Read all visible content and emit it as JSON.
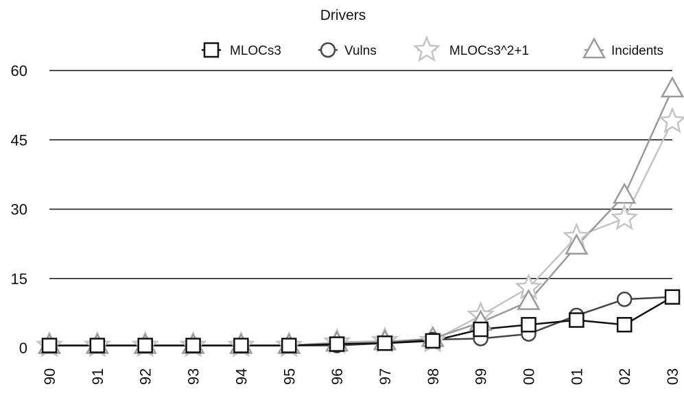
{
  "chart_data": {
    "type": "line",
    "title": "Drivers",
    "xlabel": "",
    "ylabel": "",
    "categories": [
      "90",
      "91",
      "92",
      "93",
      "94",
      "95",
      "96",
      "97",
      "98",
      "99",
      "00",
      "01",
      "02",
      "03"
    ],
    "ylim": [
      0,
      60
    ],
    "yticks": [
      0,
      15,
      30,
      45,
      60
    ],
    "grid": true,
    "legend_position": "top",
    "series": [
      {
        "name": "MLOCs3",
        "marker": "square",
        "color": "#111111",
        "values": [
          0.5,
          0.5,
          0.5,
          0.5,
          0.5,
          0.5,
          0.8,
          1.0,
          1.5,
          4.0,
          5.0,
          6.0,
          5.0,
          11.0
        ]
      },
      {
        "name": "Vulns",
        "marker": "circle",
        "color": "#444444",
        "values": [
          0.5,
          0.5,
          0.5,
          0.5,
          0.5,
          0.5,
          0.5,
          1.0,
          1.8,
          2.0,
          3.0,
          7.0,
          10.5,
          11.0
        ]
      },
      {
        "name": "MLOCs3^2+1",
        "marker": "star",
        "color": "#c4c4c4",
        "values": [
          0.5,
          0.5,
          0.5,
          0.5,
          0.5,
          0.5,
          1.2,
          1.5,
          1.5,
          7.0,
          13.0,
          24.0,
          28.0,
          49.0
        ]
      },
      {
        "name": "Incidents",
        "marker": "triangle",
        "color": "#9a9a9a",
        "values": [
          0.5,
          0.5,
          0.5,
          0.5,
          0.5,
          0.5,
          1.0,
          1.3,
          2.0,
          5.5,
          10.0,
          22.0,
          33.0,
          56.0
        ]
      }
    ]
  }
}
